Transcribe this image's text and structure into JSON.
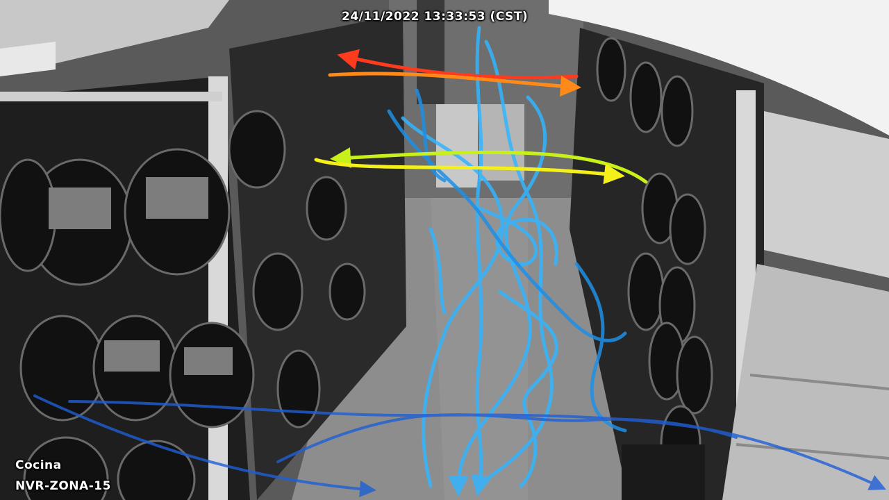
{
  "overlay": {
    "timestamp": "24/11/2022 13:33:53 (CST)",
    "zone_name": "Cocina",
    "camera_id": "NVR-ZONA-15"
  },
  "scene": {
    "description_tag": "store-aisle-cookware",
    "grayscale": true
  },
  "tracks": {
    "cross_aisle": [
      {
        "id": "upper-left",
        "direction": "left",
        "color": "#ff3b1f"
      },
      {
        "id": "upper-right",
        "direction": "right",
        "color": "#ff8a1a"
      },
      {
        "id": "lower-left",
        "direction": "left",
        "color": "#f5f01a"
      },
      {
        "id": "lower-right",
        "direction": "right",
        "color": "#c8f01a"
      }
    ],
    "trail_colors": {
      "light": "#33b5ff",
      "mid": "#1e8fe6",
      "dark": "#1f5fd6"
    }
  }
}
